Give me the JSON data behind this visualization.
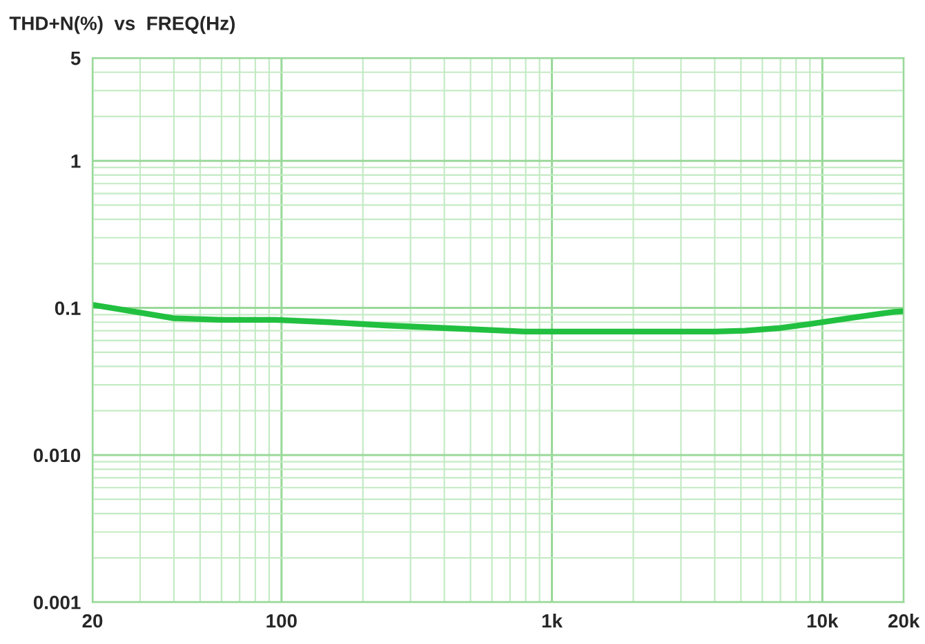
{
  "chart_data": {
    "type": "line",
    "title": "THD+N(%)  vs  FREQ(Hz)",
    "log": "xy",
    "grid": true,
    "marker": "none",
    "line_style": "solid",
    "xlim": [
      20,
      20000
    ],
    "xticks": [
      20,
      100,
      {
        "value": 1000,
        "label": "1k"
      },
      {
        "value": 10000,
        "label": "10k"
      },
      {
        "value": 20000,
        "label": "20k"
      }
    ],
    "ylim": [
      0.001,
      5
    ],
    "yticks": [
      0.001,
      {
        "value": 0.01,
        "label": "0.010"
      },
      0.1,
      1,
      5
    ],
    "series": [
      {
        "color": "#22c040",
        "x": [
          20,
          30,
          40,
          60,
          95,
          150,
          244,
          400,
          791,
          1500,
          2560,
          4000,
          5180,
          7000,
          9100,
          13000,
          18400,
          20000
        ],
        "values": [
          0.105,
          0.093,
          0.085,
          0.083,
          0.083,
          0.08,
          0.076,
          0.073,
          0.069,
          0.069,
          0.069,
          0.069,
          0.07,
          0.073,
          0.078,
          0.086,
          0.094,
          0.095
        ]
      }
    ]
  }
}
